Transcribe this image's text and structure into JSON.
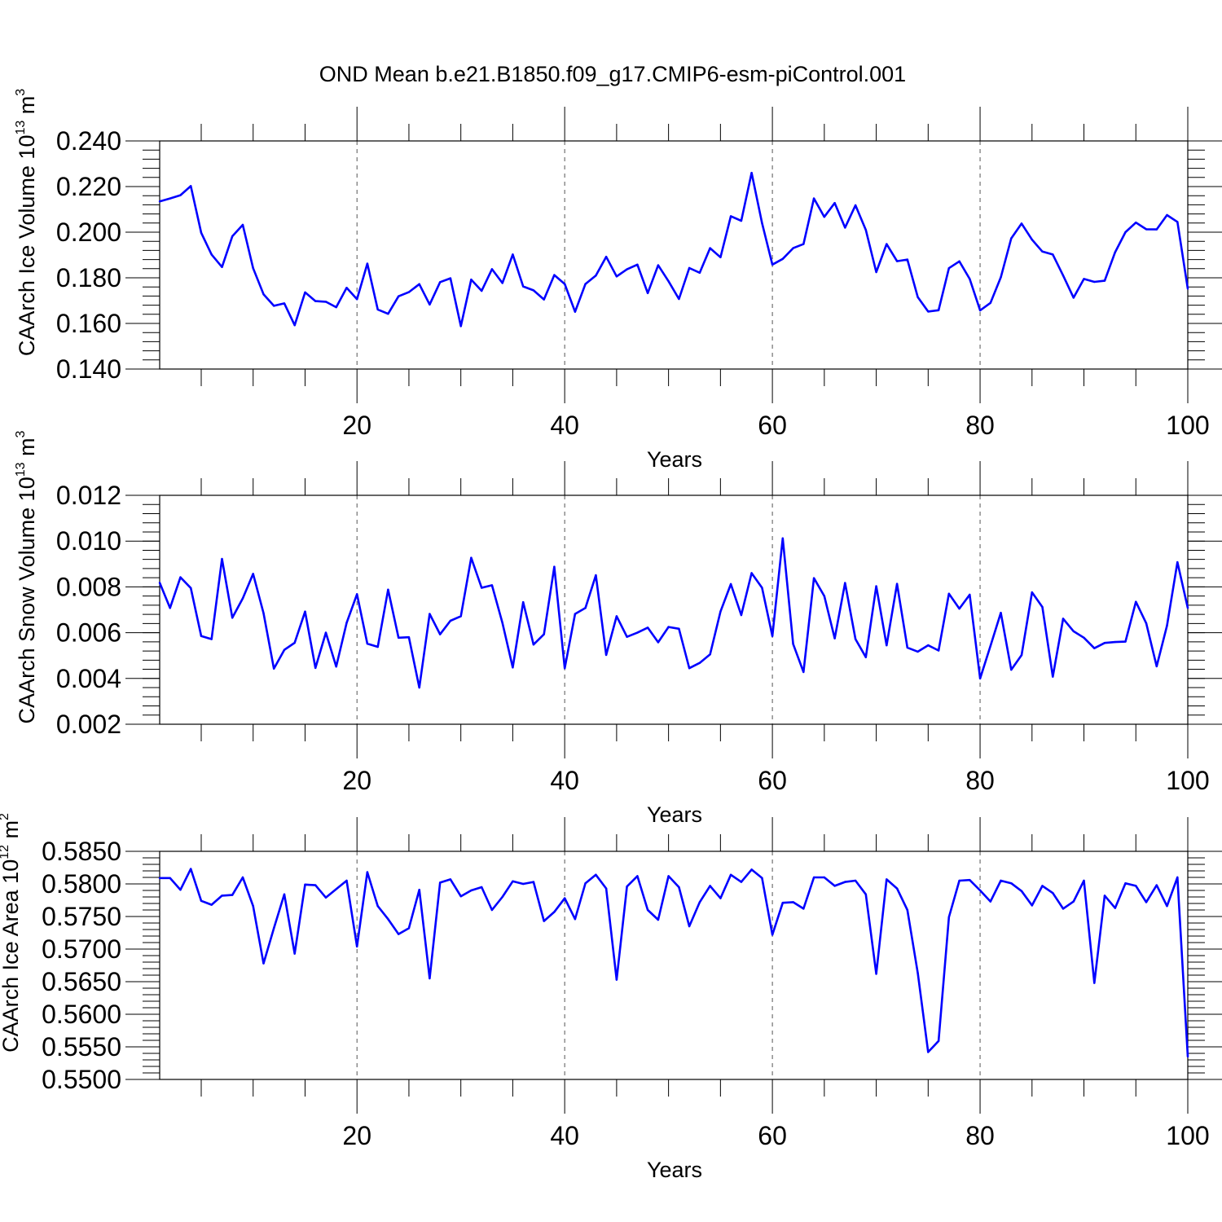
{
  "title": "OND Mean b.e21.B1850.f09_g17.CMIP6-esm-piControl.001",
  "line_color": "#0000ff",
  "chart_data": [
    {
      "type": "line",
      "name": "ice-volume",
      "ylabel_main": "CAArch Ice Volume 10",
      "ylabel_exp": "13",
      "ylabel_unit": "m",
      "ylabel_unit_exp": "3",
      "xlabel": "Years",
      "xlim": [
        1,
        100
      ],
      "ylim": [
        0.14,
        0.24
      ],
      "xticks": [
        20,
        40,
        60,
        80,
        100
      ],
      "xtick_labels": [
        "20",
        "40",
        "60",
        "80",
        "100"
      ],
      "yticks": [
        0.14,
        0.16,
        0.18,
        0.2,
        0.22,
        0.24
      ],
      "ytick_labels": [
        "0.140",
        "0.160",
        "0.180",
        "0.200",
        "0.220",
        "0.240"
      ],
      "yminor_step": 0.004,
      "grid": "dashed vertical at major x ticks",
      "x_start": 1,
      "values": [
        0.2135,
        0.2148,
        0.2162,
        0.2202,
        0.1997,
        0.1902,
        0.1847,
        0.1982,
        0.2032,
        0.1842,
        0.1728,
        0.1677,
        0.1688,
        0.1592,
        0.1736,
        0.1698,
        0.1695,
        0.1671,
        0.1756,
        0.1706,
        0.1862,
        0.1661,
        0.1642,
        0.1719,
        0.1737,
        0.1772,
        0.1683,
        0.1781,
        0.1798,
        0.1588,
        0.1792,
        0.1743,
        0.1838,
        0.1777,
        0.1902,
        0.1762,
        0.1745,
        0.1705,
        0.1812,
        0.1773,
        0.1651,
        0.1773,
        0.181,
        0.1892,
        0.1806,
        0.1837,
        0.1858,
        0.1733,
        0.1855,
        0.1785,
        0.1707,
        0.1843,
        0.1822,
        0.193,
        0.189,
        0.207,
        0.205,
        0.226,
        0.204,
        0.1858,
        0.1883,
        0.193,
        0.1948,
        0.2148,
        0.2067,
        0.2128,
        0.202,
        0.2118,
        0.201,
        0.1825,
        0.1948,
        0.1873,
        0.188,
        0.1715,
        0.1652,
        0.1658,
        0.1842,
        0.1872,
        0.1795,
        0.1657,
        0.169,
        0.1802,
        0.1973,
        0.2038,
        0.1967,
        0.1915,
        0.1902,
        0.181,
        0.1713,
        0.1795,
        0.1782,
        0.1787,
        0.1912,
        0.2,
        0.2042,
        0.2013,
        0.2012,
        0.2075,
        0.2045,
        0.1752
      ]
    },
    {
      "type": "line",
      "name": "snow-volume",
      "ylabel_main": "CAArch Snow Volume 10",
      "ylabel_exp": "13",
      "ylabel_unit": "m",
      "ylabel_unit_exp": "3",
      "xlabel": "Years",
      "xlim": [
        1,
        100
      ],
      "ylim": [
        0.002,
        0.012
      ],
      "xticks": [
        20,
        40,
        60,
        80,
        100
      ],
      "xtick_labels": [
        "20",
        "40",
        "60",
        "80",
        "100"
      ],
      "yticks": [
        0.002,
        0.004,
        0.006,
        0.008,
        0.01,
        0.012
      ],
      "ytick_labels": [
        "0.002",
        "0.004",
        "0.006",
        "0.008",
        "0.010",
        "0.012"
      ],
      "yminor_step": 0.0004,
      "grid": "dashed vertical at major x ticks",
      "x_start": 1,
      "values": [
        0.00818,
        0.00708,
        0.00842,
        0.00795,
        0.00585,
        0.00572,
        0.00922,
        0.00665,
        0.0075,
        0.00857,
        0.00685,
        0.00443,
        0.00525,
        0.00556,
        0.00692,
        0.00446,
        0.006,
        0.00452,
        0.00643,
        0.00768,
        0.00552,
        0.00538,
        0.00788,
        0.00578,
        0.0058,
        0.0036,
        0.00682,
        0.00593,
        0.00652,
        0.00672,
        0.00927,
        0.00796,
        0.00807,
        0.00643,
        0.00448,
        0.00733,
        0.00548,
        0.00593,
        0.00888,
        0.00445,
        0.00682,
        0.00708,
        0.00851,
        0.00503,
        0.00672,
        0.00582,
        0.006,
        0.00622,
        0.00558,
        0.00625,
        0.00617,
        0.00445,
        0.00468,
        0.00505,
        0.00692,
        0.00812,
        0.00677,
        0.0086,
        0.00796,
        0.00585,
        0.01012,
        0.0055,
        0.00428,
        0.00838,
        0.0076,
        0.00575,
        0.00817,
        0.00572,
        0.00493,
        0.00803,
        0.00545,
        0.00813,
        0.00535,
        0.00517,
        0.00545,
        0.00522,
        0.0077,
        0.00705,
        0.00766,
        0.004,
        0.00542,
        0.00687,
        0.00438,
        0.00502,
        0.00776,
        0.00712,
        0.00408,
        0.00661,
        0.00606,
        0.00578,
        0.00532,
        0.00555,
        0.00559,
        0.00561,
        0.00735,
        0.00641,
        0.00453,
        0.00631,
        0.00908,
        0.00708
      ]
    },
    {
      "type": "line",
      "name": "ice-area",
      "ylabel_main": "CAArch Ice Area 10",
      "ylabel_exp": "12",
      "ylabel_unit": "m",
      "ylabel_unit_exp": "2",
      "xlabel": "Years",
      "xlim": [
        1,
        100
      ],
      "ylim": [
        0.55,
        0.585
      ],
      "xticks": [
        20,
        40,
        60,
        80,
        100
      ],
      "xtick_labels": [
        "20",
        "40",
        "60",
        "80",
        "100"
      ],
      "yticks": [
        0.55,
        0.555,
        0.56,
        0.565,
        0.57,
        0.575,
        0.58,
        0.585
      ],
      "ytick_labels": [
        "0.5500",
        "0.5550",
        "0.5600",
        "0.5650",
        "0.5700",
        "0.5750",
        "0.5800",
        "0.5850"
      ],
      "yminor_step": 0.001,
      "grid": "dashed vertical at major x ticks",
      "x_start": 1,
      "values": [
        0.5809,
        0.5809,
        0.5791,
        0.5823,
        0.5774,
        0.5768,
        0.5782,
        0.5783,
        0.581,
        0.5766,
        0.5678,
        0.5732,
        0.5784,
        0.5693,
        0.5799,
        0.5798,
        0.5779,
        0.5792,
        0.5805,
        0.5704,
        0.5818,
        0.5766,
        0.5746,
        0.5723,
        0.5732,
        0.5791,
        0.5655,
        0.5802,
        0.5807,
        0.5781,
        0.579,
        0.5795,
        0.576,
        0.578,
        0.5804,
        0.58,
        0.5803,
        0.5743,
        0.5757,
        0.5778,
        0.5746,
        0.5801,
        0.5814,
        0.5793,
        0.5653,
        0.5796,
        0.5812,
        0.576,
        0.5745,
        0.5812,
        0.5795,
        0.5735,
        0.5772,
        0.5797,
        0.5778,
        0.5814,
        0.5803,
        0.5822,
        0.5809,
        0.5722,
        0.5771,
        0.5772,
        0.5762,
        0.581,
        0.581,
        0.5797,
        0.5803,
        0.5805,
        0.5784,
        0.5662,
        0.5807,
        0.5793,
        0.576,
        0.5663,
        0.5542,
        0.5559,
        0.5749,
        0.5805,
        0.5806,
        0.579,
        0.5773,
        0.5805,
        0.5801,
        0.5789,
        0.5767,
        0.5797,
        0.5786,
        0.5762,
        0.5773,
        0.5805,
        0.5648,
        0.5782,
        0.5763,
        0.5801,
        0.5797,
        0.5772,
        0.5798,
        0.5766,
        0.581,
        0.5535
      ]
    }
  ]
}
